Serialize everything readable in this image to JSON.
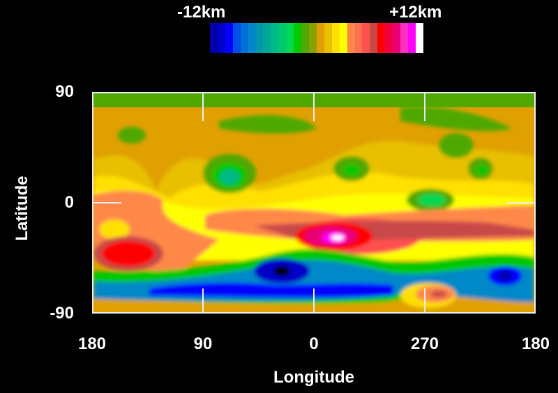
{
  "colorbar": {
    "min_label": "-12km",
    "max_label": "+12km",
    "colors": [
      "#0000a8",
      "#0000c8",
      "#0000ff",
      "#0050e8",
      "#0070d8",
      "#0088c8",
      "#0098a8",
      "#00a898",
      "#00b888",
      "#00c870",
      "#00d850",
      "#00c800",
      "#50a800",
      "#88a000",
      "#e0a000",
      "#e8c000",
      "#ffe000",
      "#ffff00",
      "#ff8848",
      "#ff7050",
      "#ff5050",
      "#c84848",
      "#ff0000",
      "#f00040",
      "#e80078",
      "#ff30c0",
      "#ff00ff",
      "#ffffff"
    ]
  },
  "axes": {
    "ylabel": "Latitude",
    "xlabel": "Longitude",
    "yticks": [
      "90",
      "0",
      "-90"
    ],
    "xticks": [
      "180",
      "90",
      "0",
      "270",
      "180"
    ]
  },
  "chart_data": {
    "type": "heatmap",
    "title": "",
    "xlabel": "Longitude",
    "ylabel": "Latitude",
    "x_tick_labels": [
      "180",
      "90",
      "0",
      "270",
      "180"
    ],
    "y_tick_labels": [
      "90",
      "0",
      "-90"
    ],
    "ylim": [
      -90,
      90
    ],
    "colorscale": {
      "min": -12,
      "max": 12,
      "unit": "km",
      "min_label": "-12km",
      "max_label": "+12km"
    },
    "grid": false,
    "features": [
      {
        "description": "Highest elevation (white/magenta peak)",
        "lon_label_approx": "~40 E of 0",
        "lat_approx": -28,
        "value_km_approx": 12
      },
      {
        "description": "Red high band along ~-20 latitude",
        "lat_approx": -20,
        "value_km_approx": 7
      },
      {
        "description": "Red high region in far west",
        "lon_label_approx": "~150",
        "lat_approx": -40,
        "value_km_approx": 7
      },
      {
        "description": "Deep blue low (black spot)",
        "lon_label_approx": "~30",
        "lat_approx": -55,
        "value_km_approx": -12
      },
      {
        "description": "Blue low basin band across southern latitudes",
        "lat_approx": -62,
        "value_km_approx": -9
      },
      {
        "description": "Green lows in northern mid latitudes",
        "lat_approx": 25,
        "value_km_approx": -4
      },
      {
        "description": "Orange/olive northern plains",
        "lat_approx": 60,
        "value_km_approx": 0
      },
      {
        "description": "Red/orange high near south pole around 270",
        "lat_approx": -80,
        "value_km_approx": 6
      }
    ]
  }
}
